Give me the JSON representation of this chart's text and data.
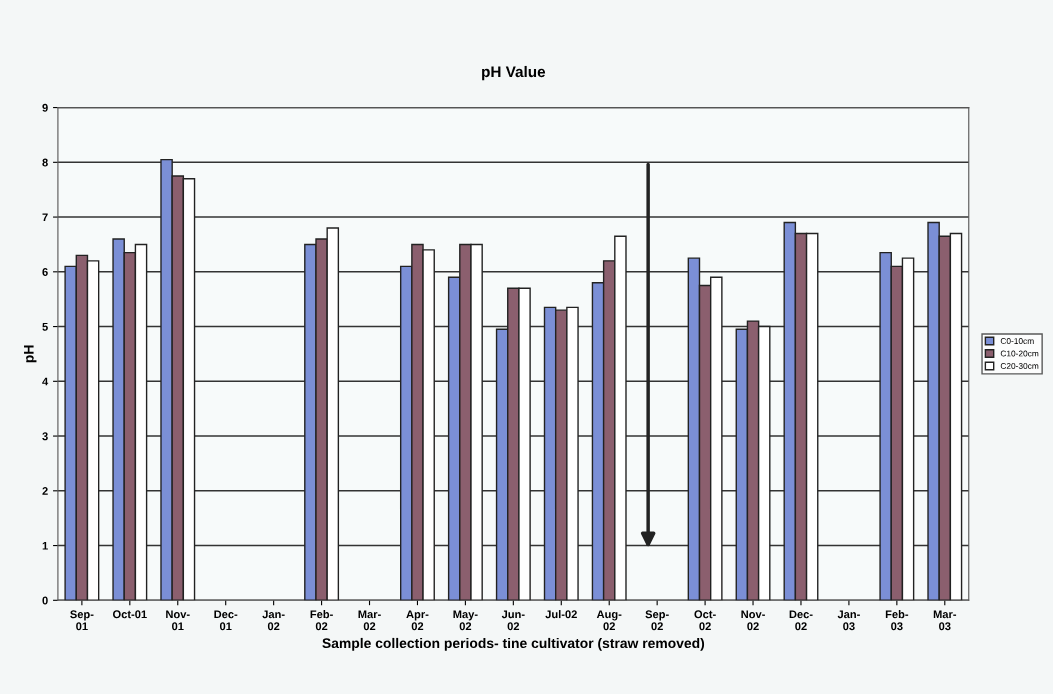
{
  "chart_data": {
    "type": "bar",
    "title": "pH Value",
    "xlabel": "Sample collection periods- tine cultivator (straw removed)",
    "ylabel": "pH",
    "categories": [
      "Sep-\n01",
      "Oct-01",
      "Nov-\n01",
      "Dec-\n01",
      "Jan-\n02",
      "Feb-\n02",
      "Mar-\n02",
      "Apr-\n02",
      "May-\n02",
      "Jun-\n02",
      "Jul-02",
      "Aug-\n02",
      "Sep-\n02",
      "Oct-\n02",
      "Nov-\n02",
      "Dec-\n02",
      "Jan-\n03",
      "Feb-\n03",
      "Mar-\n03"
    ],
    "series": [
      {
        "name": "C0-10cm",
        "color": "#7b8fd6",
        "values": [
          6.1,
          6.6,
          8.05,
          null,
          null,
          6.5,
          null,
          6.1,
          5.9,
          4.95,
          5.35,
          5.8,
          null,
          6.25,
          4.95,
          6.9,
          null,
          6.35,
          6.9
        ]
      },
      {
        "name": "C10-20cm",
        "color": "#8b5f6e",
        "values": [
          6.3,
          6.35,
          7.75,
          null,
          null,
          6.6,
          null,
          6.5,
          6.5,
          5.7,
          5.3,
          6.2,
          null,
          5.75,
          5.1,
          6.7,
          null,
          6.1,
          6.65
        ]
      },
      {
        "name": "C20-30cm",
        "color": "#ffffff",
        "values": [
          6.2,
          6.5,
          7.7,
          null,
          null,
          6.8,
          null,
          6.4,
          6.5,
          5.7,
          5.35,
          6.65,
          null,
          5.9,
          5.0,
          6.7,
          null,
          6.25,
          6.7
        ]
      }
    ],
    "ylim": [
      0,
      9
    ],
    "yticks": [
      0,
      1,
      2,
      3,
      4,
      5,
      6,
      7,
      8,
      9
    ],
    "grid": "y",
    "legend": "right"
  }
}
